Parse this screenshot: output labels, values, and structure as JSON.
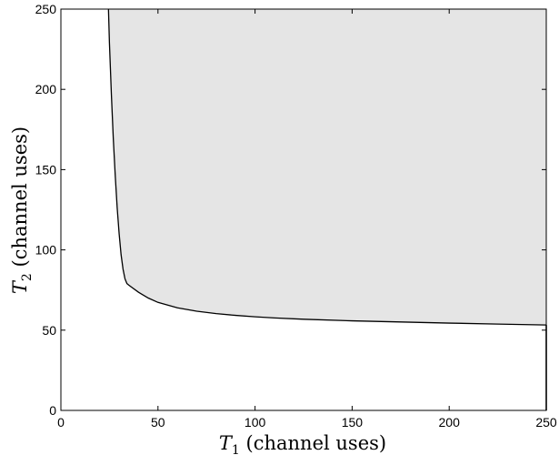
{
  "chart_data": {
    "type": "area",
    "title": "",
    "xlabel": {
      "symbol": "T",
      "subscript": "1",
      "text": " (channel uses)"
    },
    "ylabel": {
      "symbol": "T",
      "subscript": "2",
      "text": " (channel uses)"
    },
    "xlim": [
      0,
      250
    ],
    "ylim": [
      0,
      250
    ],
    "xticks": [
      0,
      50,
      100,
      150,
      200,
      250
    ],
    "yticks": [
      0,
      50,
      100,
      150,
      200,
      250
    ],
    "grid": false,
    "fill_color": "#e5e5e5",
    "line_color": "#000000",
    "boundary": {
      "x": [
        24.5,
        25,
        26,
        27,
        28,
        29,
        30,
        31,
        32,
        33,
        34,
        35,
        40,
        45,
        50,
        60,
        70,
        80,
        90,
        100,
        110,
        125,
        150,
        175,
        200,
        225,
        250
      ],
      "y": [
        250,
        229,
        197,
        169,
        146,
        126,
        110,
        97,
        88,
        82,
        79,
        78,
        73.6,
        70,
        67.3,
        63.9,
        61.8,
        60.3,
        59.2,
        58.3,
        57.6,
        56.8,
        55.8,
        55.1,
        54.4,
        53.8,
        53.2
      ]
    },
    "right_edge_segment": {
      "x": 250,
      "y": [
        0,
        53.2
      ]
    }
  }
}
